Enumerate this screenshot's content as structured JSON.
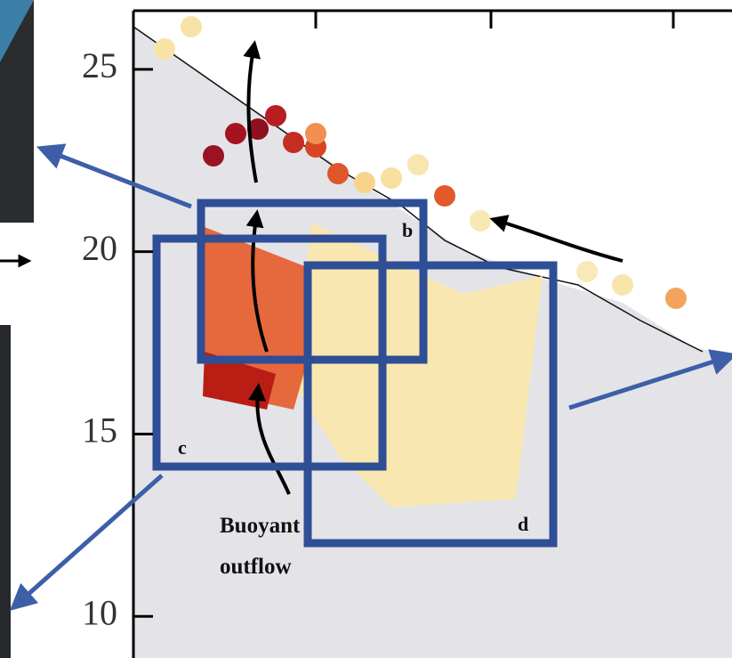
{
  "chart_data": {
    "type": "scatter",
    "ylim": [
      8.86,
      26.9
    ],
    "yticks": [
      10,
      15,
      20,
      25
    ],
    "annotations": [
      "b",
      "c",
      "d",
      "Buoyant",
      "outflow"
    ]
  }
}
